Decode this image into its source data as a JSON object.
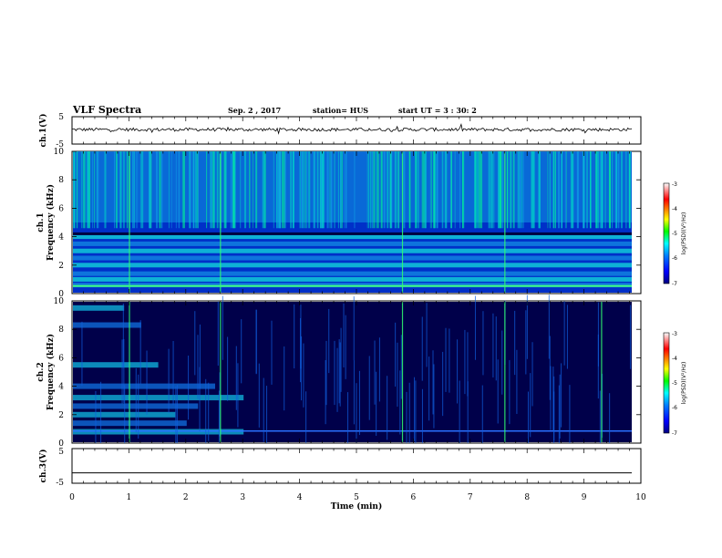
{
  "header": {
    "title": "VLF Spectra",
    "date": "Sep. 2 , 2017",
    "station": "station= HUS",
    "start": "start  UT =   3 : 30: 2"
  },
  "colors": {
    "spectrogram_background": "#00004a",
    "waveform_line": "#000000",
    "colorbar": [
      "#000080",
      "#0000ff",
      "#0080ff",
      "#00ffff",
      "#00ff00",
      "#ffff00",
      "#ff8000",
      "#ff0000",
      "#ff9090",
      "#ffffff"
    ]
  },
  "chart_data": [
    {
      "type": "line",
      "panel": "ch.1 waveform",
      "ylabel": "ch.1(V)",
      "ylim": [
        -5,
        5
      ],
      "yticks": [
        "5",
        "-5"
      ],
      "xlim": [
        0,
        10
      ],
      "description_values": {
        "baseline_V": 0.3,
        "noise_amplitude_V": 0.6
      }
    },
    {
      "type": "heatmap",
      "panel": "ch.1 spectrogram",
      "ylabel": "ch.1\nFrequency (kHz)",
      "ylim": [
        0,
        10
      ],
      "yticks": [
        "0",
        "2",
        "4",
        "6",
        "8",
        "10"
      ],
      "xlim": [
        0,
        10
      ],
      "colorbar": {
        "label": "log(PSD)(V²/Hz)",
        "range": [
          -7,
          -3
        ],
        "ticks": [
          "-3",
          "-4",
          "-5",
          "-6",
          "-7"
        ]
      },
      "bands_khz": [
        0.6,
        1.0,
        1.4,
        2.0,
        2.5,
        3.0,
        3.5,
        4.0
      ],
      "broadband_activity_khz": [
        5,
        10
      ],
      "strong_events_min": [
        1.0,
        2.6,
        5.8,
        7.6
      ]
    },
    {
      "type": "heatmap",
      "panel": "ch.2 spectrogram",
      "ylabel": "ch.2\nFrequency (kHz)",
      "ylim": [
        0,
        10
      ],
      "yticks": [
        "0",
        "2",
        "4",
        "6",
        "8",
        "10"
      ],
      "xlim": [
        0,
        10
      ],
      "colorbar": {
        "label": "log(PSD)(V²/Hz)",
        "range": [
          -7,
          -3
        ],
        "ticks": [
          "-3",
          "-4",
          "-5",
          "-6",
          "-7"
        ]
      },
      "bands_khz": [
        0.8,
        1.4,
        2.0,
        2.6,
        3.2,
        4.0,
        5.5,
        8.3,
        9.5
      ],
      "band_end_min": [
        3.0,
        2.0,
        1.8,
        2.2,
        3.0,
        2.5,
        1.5,
        1.2,
        0.9
      ],
      "strong_events_min": [
        1.0,
        2.6,
        5.8,
        7.6,
        9.3
      ]
    },
    {
      "type": "line",
      "panel": "ch.3 waveform",
      "ylabel": "ch.3(V)",
      "ylim": [
        -5,
        5
      ],
      "yticks": [
        "5",
        "-5"
      ],
      "xlim": [
        0,
        10
      ],
      "description_values": {
        "constant_V": -2
      }
    }
  ],
  "xaxis": {
    "label": "Time  (min)",
    "ticks": [
      "0",
      "1",
      "2",
      "3",
      "4",
      "5",
      "6",
      "7",
      "8",
      "9",
      "10"
    ]
  }
}
